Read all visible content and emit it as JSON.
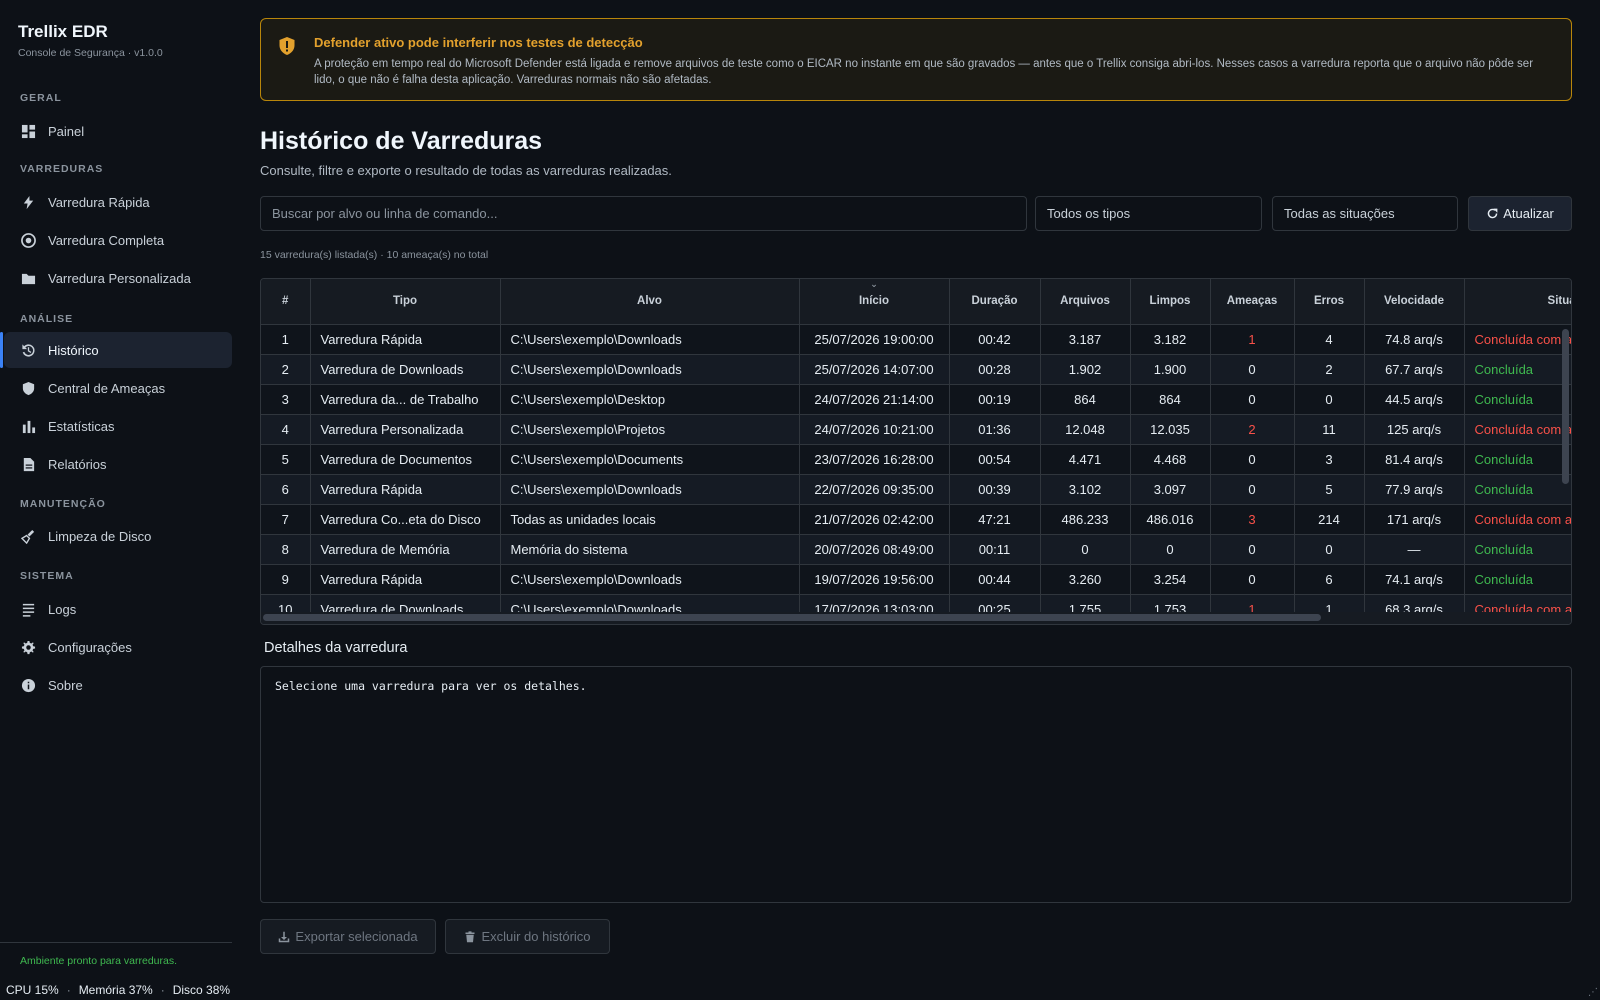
{
  "app": {
    "title": "Trellix EDR",
    "subtitle": "Console de Segurança · v1.0.0"
  },
  "sidebar": {
    "sections": [
      {
        "label": "GERAL"
      },
      {
        "label": "VARREDURAS"
      },
      {
        "label": "ANÁLISE"
      },
      {
        "label": "MANUTENÇÃO"
      },
      {
        "label": "SISTEMA"
      }
    ],
    "items": [
      {
        "label": "Painel",
        "icon": "dashboard-icon"
      },
      {
        "label": "Varredura Rápida",
        "icon": "bolt-icon"
      },
      {
        "label": "Varredura Completa",
        "icon": "target-icon"
      },
      {
        "label": "Varredura Personalizada",
        "icon": "folder-icon"
      },
      {
        "label": "Histórico",
        "icon": "history-icon",
        "active": true
      },
      {
        "label": "Central de Ameaças",
        "icon": "shield-icon"
      },
      {
        "label": "Estatísticas",
        "icon": "bar-chart-icon"
      },
      {
        "label": "Relatórios",
        "icon": "document-icon"
      },
      {
        "label": "Limpeza de Disco",
        "icon": "broom-icon"
      },
      {
        "label": "Logs",
        "icon": "list-icon"
      },
      {
        "label": "Configurações",
        "icon": "gear-icon"
      },
      {
        "label": "Sobre",
        "icon": "info-icon"
      }
    ],
    "status": "Ambiente pronto para varreduras."
  },
  "system": {
    "cpu": "CPU 15%",
    "memory": "Memória 37%",
    "disk": "Disco 38%",
    "separator": "·"
  },
  "alert": {
    "title": "Defender ativo pode interferir nos testes de detecção",
    "body": "A proteção em tempo real do Microsoft Defender está ligada e remove arquivos de teste como o EICAR no instante em que são gravados — antes que o Trellix consiga abri-los. Nesses casos a varredura reporta que o arquivo não pôde ser lido, o que não é falha desta aplicação. Varreduras normais não são afetadas.",
    "color": "#e3a12d"
  },
  "page": {
    "title": "Histórico de Varreduras",
    "subtitle": "Consulte, filtre e exporte o resultado de todas as varreduras realizadas."
  },
  "filters": {
    "search_placeholder": "Buscar por alvo ou linha de comando...",
    "type_selected": "Todos os tipos",
    "status_selected": "Todas as situações",
    "refresh_label": "Atualizar"
  },
  "summary": "15 varredura(s) listada(s) · 10 ameaça(s) no total",
  "table": {
    "columns": [
      "#",
      "Tipo",
      "Alvo",
      "Início",
      "Duração",
      "Arquivos",
      "Limpos",
      "Ameaças",
      "Erros",
      "Velocidade",
      "Situação"
    ],
    "rows": [
      {
        "n": "1",
        "tipo": "Varredura Rápida",
        "alvo": "C:\\Users\\exemplo\\Downloads",
        "inicio": "25/07/2026 19:00:00",
        "duracao": "00:42",
        "arquivos": "3.187",
        "limpos": "3.182",
        "ameacas": "1",
        "erros": "4",
        "velocidade": "74.8 arq/s",
        "situacao": "Concluída com ameaças",
        "ok": false
      },
      {
        "n": "2",
        "tipo": "Varredura de Downloads",
        "alvo": "C:\\Users\\exemplo\\Downloads",
        "inicio": "25/07/2026 14:07:00",
        "duracao": "00:28",
        "arquivos": "1.902",
        "limpos": "1.900",
        "ameacas": "0",
        "erros": "2",
        "velocidade": "67.7 arq/s",
        "situacao": "Concluída",
        "ok": true
      },
      {
        "n": "3",
        "tipo": "Varredura da... de Trabalho",
        "alvo": "C:\\Users\\exemplo\\Desktop",
        "inicio": "24/07/2026 21:14:00",
        "duracao": "00:19",
        "arquivos": "864",
        "limpos": "864",
        "ameacas": "0",
        "erros": "0",
        "velocidade": "44.5 arq/s",
        "situacao": "Concluída",
        "ok": true
      },
      {
        "n": "4",
        "tipo": "Varredura Personalizada",
        "alvo": "C:\\Users\\exemplo\\Projetos",
        "inicio": "24/07/2026 10:21:00",
        "duracao": "01:36",
        "arquivos": "12.048",
        "limpos": "12.035",
        "ameacas": "2",
        "erros": "11",
        "velocidade": "125 arq/s",
        "situacao": "Concluída com ameaças",
        "ok": false
      },
      {
        "n": "5",
        "tipo": "Varredura de Documentos",
        "alvo": "C:\\Users\\exemplo\\Documents",
        "inicio": "23/07/2026 16:28:00",
        "duracao": "00:54",
        "arquivos": "4.471",
        "limpos": "4.468",
        "ameacas": "0",
        "erros": "3",
        "velocidade": "81.4 arq/s",
        "situacao": "Concluída",
        "ok": true
      },
      {
        "n": "6",
        "tipo": "Varredura Rápida",
        "alvo": "C:\\Users\\exemplo\\Downloads",
        "inicio": "22/07/2026 09:35:00",
        "duracao": "00:39",
        "arquivos": "3.102",
        "limpos": "3.097",
        "ameacas": "0",
        "erros": "5",
        "velocidade": "77.9 arq/s",
        "situacao": "Concluída",
        "ok": true
      },
      {
        "n": "7",
        "tipo": "Varredura Co...eta do Disco",
        "alvo": "Todas as unidades locais",
        "inicio": "21/07/2026 02:42:00",
        "duracao": "47:21",
        "arquivos": "486.233",
        "limpos": "486.016",
        "ameacas": "3",
        "erros": "214",
        "velocidade": "171 arq/s",
        "situacao": "Concluída com ameaças",
        "ok": false
      },
      {
        "n": "8",
        "tipo": "Varredura de Memória",
        "alvo": "Memória do sistema",
        "inicio": "20/07/2026 08:49:00",
        "duracao": "00:11",
        "arquivos": "0",
        "limpos": "0",
        "ameacas": "0",
        "erros": "0",
        "velocidade": "—",
        "situacao": "Concluída",
        "ok": true
      },
      {
        "n": "9",
        "tipo": "Varredura Rápida",
        "alvo": "C:\\Users\\exemplo\\Downloads",
        "inicio": "19/07/2026 19:56:00",
        "duracao": "00:44",
        "arquivos": "3.260",
        "limpos": "3.254",
        "ameacas": "0",
        "erros": "6",
        "velocidade": "74.1 arq/s",
        "situacao": "Concluída",
        "ok": true
      },
      {
        "n": "10",
        "tipo": "Varredura de Downloads",
        "alvo": "C:\\Users\\exemplo\\Downloads",
        "inicio": "17/07/2026 13:03:00",
        "duracao": "00:25",
        "arquivos": "1.755",
        "limpos": "1.753",
        "ameacas": "1",
        "erros": "1",
        "velocidade": "68.3 arq/s",
        "situacao": "Concluída com ameaças",
        "ok": false
      }
    ]
  },
  "details": {
    "label": "Detalhes da varredura",
    "placeholder": "Selecione uma varredura para ver os detalhes."
  },
  "actions": {
    "export_label": "Exportar selecionada",
    "delete_label": "Excluir do histórico"
  },
  "colors": {
    "accent": "#3b82f6",
    "success": "#3fb950",
    "danger": "#f85149",
    "warning": "#e3a12d"
  }
}
